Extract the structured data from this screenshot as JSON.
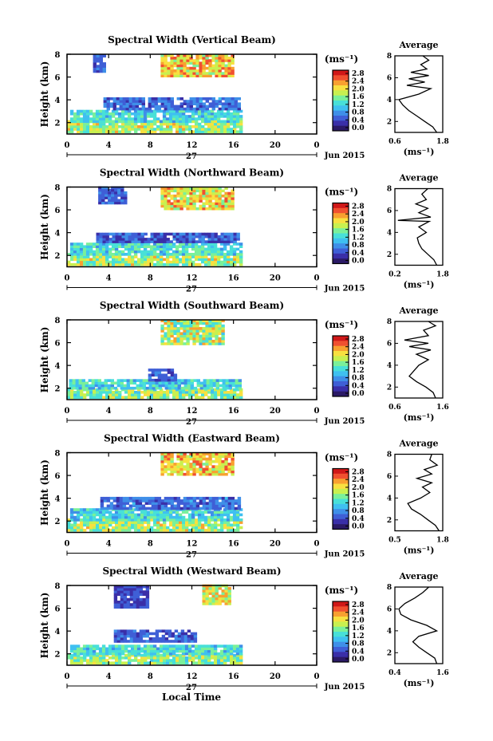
{
  "figure": {
    "x_axis_label": "Local Time",
    "date_label": "Jun 2015",
    "day_label": "27",
    "unit_label_cb": "(ms⁻¹)",
    "unit_label_avg": "(ms⁻¹)",
    "avg_title": "Average",
    "ylabel": "Height (km)",
    "colorbar_ticks": [
      "0.0",
      "0.4",
      "0.8",
      "1.2",
      "1.6",
      "2.0",
      "2.4",
      "2.8"
    ]
  },
  "colors": {
    "colormap": [
      "#2b1a66",
      "#3a2fa8",
      "#3f5fd6",
      "#3f8fe8",
      "#3fc0f0",
      "#48e0d8",
      "#7af09a",
      "#c8f050",
      "#f8e040",
      "#f8a030",
      "#f05030",
      "#d01818"
    ]
  },
  "chart_data": [
    {
      "type": "heatmap",
      "title": "Spectral Width (Vertical Beam)",
      "x_ticks": [
        "0",
        "4",
        "8",
        "12",
        "16",
        "20",
        "0"
      ],
      "y_ticks": [
        "2",
        "4",
        "6",
        "8"
      ],
      "xlim": [
        0,
        24
      ],
      "ylim": [
        1,
        8
      ],
      "layers": [
        {
          "x0": 0.0,
          "x1": 16.6,
          "y0": 1.1,
          "y1": 2.0,
          "v": 1.7,
          "spread": 0.5
        },
        {
          "x0": 0.3,
          "x1": 16.6,
          "y0": 2.0,
          "y1": 3.0,
          "v": 1.2,
          "spread": 0.4
        },
        {
          "x0": 3.5,
          "x1": 16.6,
          "y0": 3.1,
          "y1": 4.2,
          "v": 0.6,
          "spread": 0.3
        },
        {
          "x0": 2.5,
          "x1": 3.5,
          "y0": 6.4,
          "y1": 7.8,
          "v": 0.5,
          "spread": 0.2
        },
        {
          "x0": 9.0,
          "x1": 15.8,
          "y0": 6.0,
          "y1": 8.0,
          "v": 2.1,
          "spread": 0.5
        }
      ],
      "avg": {
        "xlim": [
          0.6,
          1.8
        ],
        "xticks": [
          "0.6",
          "1.8"
        ],
        "profile": [
          [
            1.0,
            1.65
          ],
          [
            1.5,
            1.55
          ],
          [
            2.0,
            1.35
          ],
          [
            2.5,
            1.15
          ],
          [
            3.0,
            0.95
          ],
          [
            3.5,
            0.8
          ],
          [
            4.0,
            0.7
          ],
          [
            4.5,
            1.2
          ],
          [
            5.0,
            1.5
          ],
          [
            5.3,
            0.9
          ],
          [
            5.6,
            1.35
          ],
          [
            5.9,
            0.95
          ],
          [
            6.2,
            1.45
          ],
          [
            6.5,
            1.0
          ],
          [
            6.8,
            1.4
          ],
          [
            7.2,
            1.25
          ],
          [
            7.6,
            1.45
          ],
          [
            8.0,
            1.3
          ]
        ]
      }
    },
    {
      "type": "heatmap",
      "title": "Spectral Width (Northward Beam)",
      "x_ticks": [
        "0",
        "4",
        "8",
        "12",
        "16",
        "20",
        "0"
      ],
      "y_ticks": [
        "2",
        "4",
        "6",
        "8"
      ],
      "xlim": [
        0,
        24
      ],
      "ylim": [
        1,
        8
      ],
      "layers": [
        {
          "x0": 0.0,
          "x1": 16.6,
          "y0": 1.1,
          "y1": 2.0,
          "v": 1.7,
          "spread": 0.5
        },
        {
          "x0": 0.3,
          "x1": 16.6,
          "y0": 2.0,
          "y1": 3.0,
          "v": 1.2,
          "spread": 0.4
        },
        {
          "x0": 2.8,
          "x1": 16.6,
          "y0": 3.1,
          "y1": 3.9,
          "v": 0.5,
          "spread": 0.3
        },
        {
          "x0": 3.0,
          "x1": 5.5,
          "y0": 6.5,
          "y1": 7.9,
          "v": 0.5,
          "spread": 0.2
        },
        {
          "x0": 9.0,
          "x1": 15.8,
          "y0": 6.0,
          "y1": 8.0,
          "v": 2.0,
          "spread": 0.5
        }
      ],
      "avg": {
        "xlim": [
          0.2,
          1.8
        ],
        "xticks": [
          "0.2",
          "1.8"
        ],
        "profile": [
          [
            1.0,
            1.6
          ],
          [
            1.5,
            1.5
          ],
          [
            2.0,
            1.3
          ],
          [
            2.5,
            1.1
          ],
          [
            3.0,
            1.0
          ],
          [
            3.5,
            0.95
          ],
          [
            4.0,
            1.25
          ],
          [
            4.5,
            1.0
          ],
          [
            5.0,
            1.35
          ],
          [
            5.1,
            0.3
          ],
          [
            5.4,
            1.4
          ],
          [
            5.8,
            1.0
          ],
          [
            6.2,
            1.3
          ],
          [
            6.6,
            0.9
          ],
          [
            7.0,
            1.25
          ],
          [
            7.5,
            1.1
          ],
          [
            8.0,
            1.3
          ]
        ]
      }
    },
    {
      "type": "heatmap",
      "title": "Spectral Width (Southward Beam)",
      "x_ticks": [
        "0",
        "4",
        "8",
        "12",
        "16",
        "20",
        "0"
      ],
      "y_ticks": [
        "2",
        "4",
        "6",
        "8"
      ],
      "xlim": [
        0,
        24
      ],
      "ylim": [
        1,
        8
      ],
      "layers": [
        {
          "x0": 0.0,
          "x1": 16.6,
          "y0": 1.1,
          "y1": 1.9,
          "v": 1.6,
          "spread": 0.5
        },
        {
          "x0": 0.2,
          "x1": 16.6,
          "y0": 1.9,
          "y1": 2.7,
          "v": 1.2,
          "spread": 0.4
        },
        {
          "x0": 7.8,
          "x1": 10.5,
          "y0": 2.6,
          "y1": 3.5,
          "v": 0.5,
          "spread": 0.2
        },
        {
          "x0": 9.0,
          "x1": 15.0,
          "y0": 5.8,
          "y1": 8.0,
          "v": 1.7,
          "spread": 0.6
        }
      ],
      "avg": {
        "xlim": [
          0.6,
          1.6
        ],
        "xticks": [
          "0.6",
          "1.6"
        ],
        "profile": [
          [
            1.0,
            1.45
          ],
          [
            1.5,
            1.4
          ],
          [
            2.0,
            1.25
          ],
          [
            2.5,
            1.05
          ],
          [
            3.0,
            0.9
          ],
          [
            3.5,
            1.0
          ],
          [
            4.0,
            1.1
          ],
          [
            4.5,
            1.3
          ],
          [
            5.0,
            1.05
          ],
          [
            5.4,
            1.35
          ],
          [
            5.7,
            0.9
          ],
          [
            6.0,
            1.3
          ],
          [
            6.3,
            0.8
          ],
          [
            6.7,
            1.3
          ],
          [
            7.2,
            1.2
          ],
          [
            7.6,
            1.45
          ],
          [
            8.0,
            1.3
          ]
        ]
      }
    },
    {
      "type": "heatmap",
      "title": "Spectral Width (Eastward Beam)",
      "x_ticks": [
        "0",
        "4",
        "8",
        "12",
        "16",
        "20",
        "0"
      ],
      "y_ticks": [
        "2",
        "4",
        "6",
        "8"
      ],
      "xlim": [
        0,
        24
      ],
      "ylim": [
        1,
        8
      ],
      "layers": [
        {
          "x0": 0.0,
          "x1": 16.6,
          "y0": 1.1,
          "y1": 2.0,
          "v": 1.7,
          "spread": 0.5
        },
        {
          "x0": 0.3,
          "x1": 16.6,
          "y0": 2.0,
          "y1": 2.9,
          "v": 1.2,
          "spread": 0.4
        },
        {
          "x0": 3.2,
          "x1": 16.6,
          "y0": 3.0,
          "y1": 4.0,
          "v": 0.6,
          "spread": 0.3
        },
        {
          "x0": 9.0,
          "x1": 15.8,
          "y0": 6.0,
          "y1": 8.0,
          "v": 2.1,
          "spread": 0.5
        }
      ],
      "avg": {
        "xlim": [
          0.5,
          1.8
        ],
        "xticks": [
          "0.5",
          "1.8"
        ],
        "profile": [
          [
            1.0,
            1.7
          ],
          [
            1.5,
            1.6
          ],
          [
            2.0,
            1.4
          ],
          [
            2.5,
            1.2
          ],
          [
            3.0,
            0.95
          ],
          [
            3.5,
            0.85
          ],
          [
            4.0,
            1.2
          ],
          [
            4.5,
            1.45
          ],
          [
            5.0,
            1.25
          ],
          [
            5.4,
            1.5
          ],
          [
            5.8,
            1.1
          ],
          [
            6.2,
            1.5
          ],
          [
            6.6,
            1.3
          ],
          [
            7.0,
            1.65
          ],
          [
            7.5,
            1.45
          ],
          [
            8.0,
            1.5
          ]
        ]
      }
    },
    {
      "type": "heatmap",
      "title": "Spectral Width (Westward Beam)",
      "x_ticks": [
        "0",
        "4",
        "8",
        "12",
        "16",
        "20",
        "0"
      ],
      "y_ticks": [
        "2",
        "4",
        "6",
        "8"
      ],
      "xlim": [
        0,
        24
      ],
      "ylim": [
        1,
        8
      ],
      "layers": [
        {
          "x0": 0.0,
          "x1": 16.6,
          "y0": 1.1,
          "y1": 1.9,
          "v": 1.6,
          "spread": 0.5
        },
        {
          "x0": 0.3,
          "x1": 16.6,
          "y0": 1.9,
          "y1": 2.6,
          "v": 1.2,
          "spread": 0.4
        },
        {
          "x0": 4.5,
          "x1": 12.2,
          "y0": 3.0,
          "y1": 3.9,
          "v": 0.5,
          "spread": 0.2
        },
        {
          "x0": 4.5,
          "x1": 7.8,
          "y0": 6.0,
          "y1": 8.0,
          "v": 0.4,
          "spread": 0.2
        },
        {
          "x0": 13.0,
          "x1": 15.5,
          "y0": 6.3,
          "y1": 8.0,
          "v": 1.9,
          "spread": 0.5
        }
      ],
      "avg": {
        "xlim": [
          0.4,
          1.6
        ],
        "xticks": [
          "0.4",
          "1.6"
        ],
        "profile": [
          [
            1.0,
            1.45
          ],
          [
            1.5,
            1.4
          ],
          [
            2.0,
            1.2
          ],
          [
            2.5,
            1.0
          ],
          [
            3.0,
            0.85
          ],
          [
            3.5,
            1.0
          ],
          [
            4.0,
            1.45
          ],
          [
            4.5,
            1.2
          ],
          [
            5.0,
            0.8
          ],
          [
            5.5,
            0.55
          ],
          [
            6.0,
            0.5
          ],
          [
            6.5,
            0.65
          ],
          [
            7.0,
            0.9
          ],
          [
            7.5,
            1.1
          ],
          [
            8.0,
            1.25
          ]
        ]
      }
    }
  ]
}
